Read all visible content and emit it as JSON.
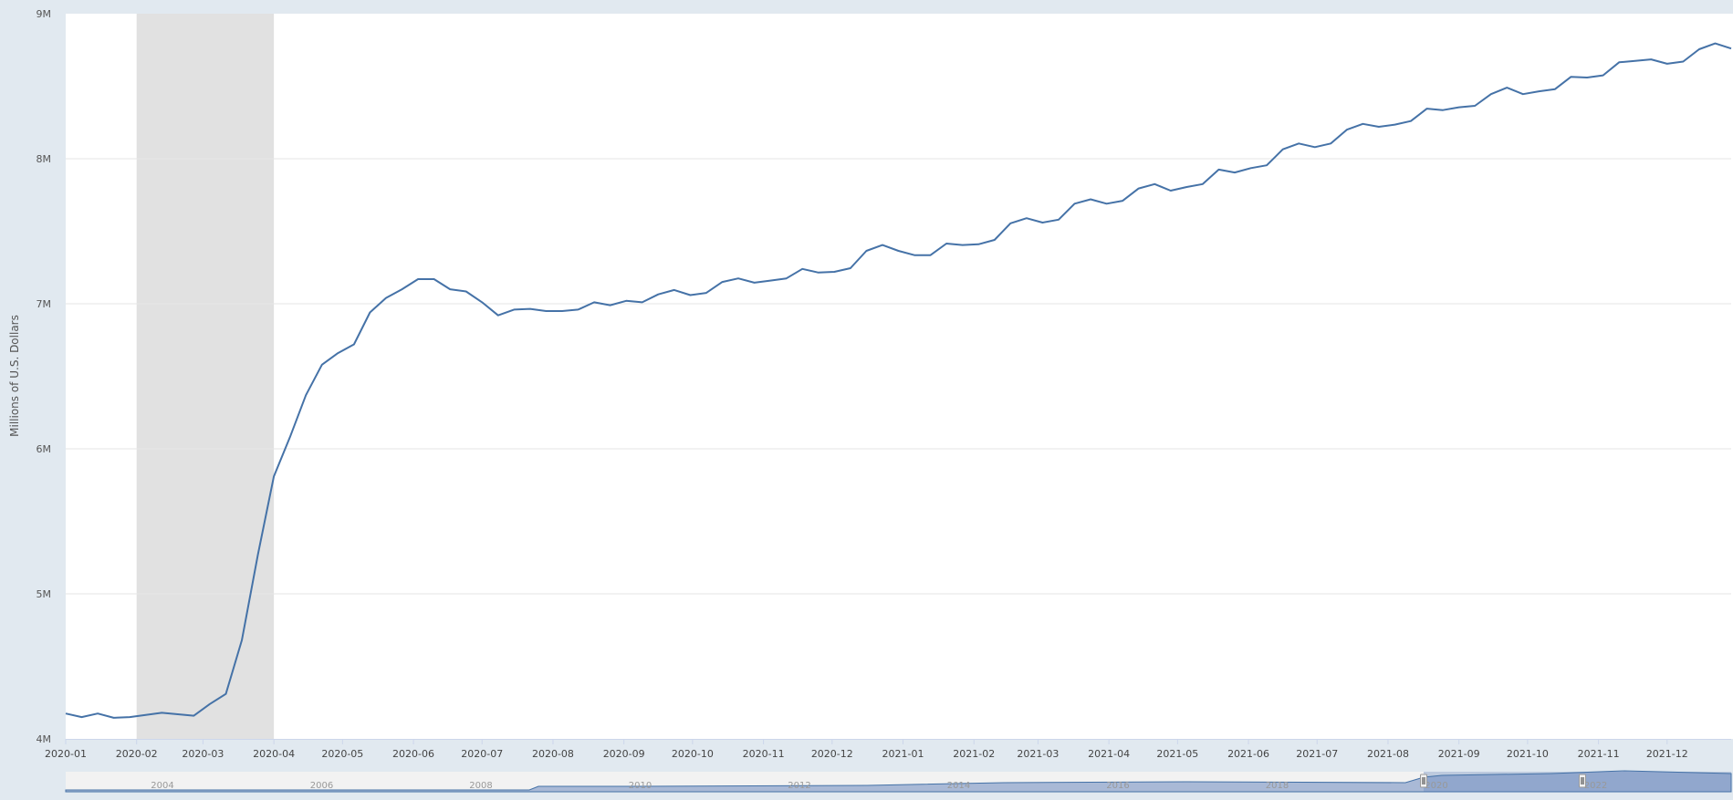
{
  "chart_data": {
    "type": "line",
    "ylabel": "Millions of U.S. Dollars",
    "y_ticks": [
      "4M",
      "5M",
      "6M",
      "7M",
      "8M",
      "9M"
    ],
    "ylim": [
      4000000,
      9000000
    ],
    "x_ticks": [
      "2020-01",
      "2020-02",
      "2020-03",
      "2020-04",
      "2020-05",
      "2020-06",
      "2020-07",
      "2020-08",
      "2020-09",
      "2020-10",
      "2020-11",
      "2020-12",
      "2021-01",
      "2021-02",
      "2021-03",
      "2021-04",
      "2021-05",
      "2021-06",
      "2021-07",
      "2021-08",
      "2021-09",
      "2021-10",
      "2021-11",
      "2021-12"
    ],
    "xlim": [
      "2020-01-01",
      "2021-12-29"
    ],
    "recession_shading": {
      "start": "2020-02-01",
      "end": "2020-04-01"
    },
    "line_color": "#4572a7",
    "grid": true,
    "series": [
      {
        "x": [
          "2020-01-01",
          "2020-01-08",
          "2020-01-15",
          "2020-01-22",
          "2020-01-29",
          "2020-02-05",
          "2020-02-12",
          "2020-02-19",
          "2020-02-26",
          "2020-03-04",
          "2020-03-11",
          "2020-03-18",
          "2020-03-25",
          "2020-04-01",
          "2020-04-08",
          "2020-04-15",
          "2020-04-22",
          "2020-04-29",
          "2020-05-06",
          "2020-05-13",
          "2020-05-20",
          "2020-05-27",
          "2020-06-03",
          "2020-06-10",
          "2020-06-17",
          "2020-06-24",
          "2020-07-01",
          "2020-07-08",
          "2020-07-15",
          "2020-07-22",
          "2020-07-29",
          "2020-08-05",
          "2020-08-12",
          "2020-08-19",
          "2020-08-26",
          "2020-09-02",
          "2020-09-09",
          "2020-09-16",
          "2020-09-23",
          "2020-09-30",
          "2020-10-07",
          "2020-10-14",
          "2020-10-21",
          "2020-10-28",
          "2020-11-04",
          "2020-11-11",
          "2020-11-18",
          "2020-11-25",
          "2020-12-02",
          "2020-12-09",
          "2020-12-16",
          "2020-12-23",
          "2020-12-30",
          "2021-01-06",
          "2021-01-13",
          "2021-01-20",
          "2021-01-27",
          "2021-02-03",
          "2021-02-10",
          "2021-02-17",
          "2021-02-24",
          "2021-03-03",
          "2021-03-10",
          "2021-03-17",
          "2021-03-24",
          "2021-03-31",
          "2021-04-07",
          "2021-04-14",
          "2021-04-21",
          "2021-04-28",
          "2021-05-05",
          "2021-05-12",
          "2021-05-19",
          "2021-05-26",
          "2021-06-02",
          "2021-06-09",
          "2021-06-16",
          "2021-06-23",
          "2021-06-30",
          "2021-07-07",
          "2021-07-14",
          "2021-07-21",
          "2021-07-28",
          "2021-08-04",
          "2021-08-11",
          "2021-08-18",
          "2021-08-25",
          "2021-09-01",
          "2021-09-08",
          "2021-09-15",
          "2021-09-22",
          "2021-09-29",
          "2021-10-06",
          "2021-10-13",
          "2021-10-20",
          "2021-10-27",
          "2021-11-03",
          "2021-11-10",
          "2021-11-17",
          "2021-11-24",
          "2021-12-01",
          "2021-12-08",
          "2021-12-15",
          "2021-12-22",
          "2021-12-29"
        ],
        "values": [
          4175000,
          4150000,
          4175000,
          4145000,
          4150000,
          4165000,
          4180000,
          4170000,
          4160000,
          4240000,
          4310000,
          4680000,
          5270000,
          5810000,
          6080000,
          6370000,
          6580000,
          6660000,
          6720000,
          6940000,
          7040000,
          7100000,
          7170000,
          7170000,
          7100000,
          7085000,
          7010000,
          6920000,
          6960000,
          6965000,
          6950000,
          6950000,
          6960000,
          7010000,
          6990000,
          7020000,
          7010000,
          7065000,
          7095000,
          7060000,
          7075000,
          7150000,
          7175000,
          7145000,
          7160000,
          7175000,
          7240000,
          7215000,
          7220000,
          7245000,
          7365000,
          7405000,
          7365000,
          7335000,
          7335000,
          7415000,
          7405000,
          7410000,
          7440000,
          7555000,
          7590000,
          7560000,
          7580000,
          7690000,
          7720000,
          7690000,
          7710000,
          7795000,
          7825000,
          7780000,
          7805000,
          7825000,
          7925000,
          7905000,
          7935000,
          7955000,
          8065000,
          8105000,
          8080000,
          8105000,
          8200000,
          8240000,
          8220000,
          8235000,
          8260000,
          8345000,
          8335000,
          8355000,
          8365000,
          8445000,
          8490000,
          8445000,
          8465000,
          8480000,
          8565000,
          8560000,
          8575000,
          8665000,
          8675000,
          8685000,
          8655000,
          8670000,
          8755000,
          8795000,
          8760000
        ]
      }
    ]
  },
  "navigator": {
    "year_labels": [
      "2004",
      "2006",
      "2008",
      "2010",
      "2012",
      "2014",
      "2016",
      "2018",
      "2020",
      "2022"
    ]
  }
}
